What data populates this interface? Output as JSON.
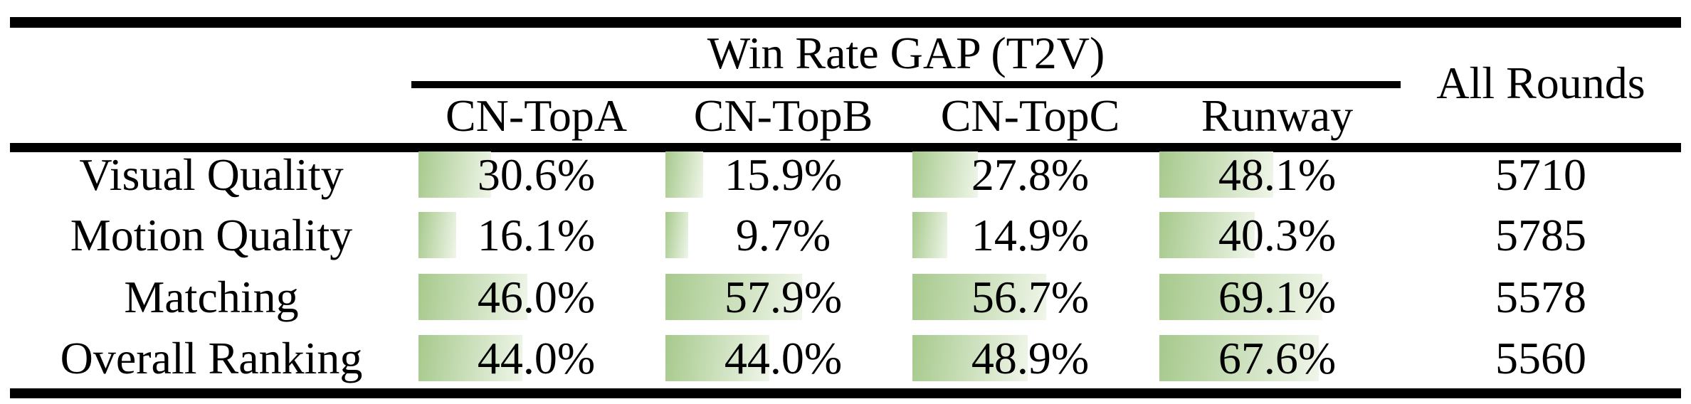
{
  "table": {
    "spanner_title": "Win Rate GAP (T2V)",
    "all_rounds_label": "All Rounds",
    "columns": [
      "CN-TopA",
      "CN-TopB",
      "CN-TopC",
      "Runway"
    ],
    "bar_color_start": "#a6c98c",
    "bar_color_end": "#f0f6ea",
    "rows": [
      {
        "label": "Visual Quality",
        "cells": [
          {
            "text": "30.6%",
            "value": 30.6
          },
          {
            "text": "15.9%",
            "value": 15.9
          },
          {
            "text": "27.8%",
            "value": 27.8
          },
          {
            "text": "48.1%",
            "value": 48.1
          }
        ],
        "all_rounds": "5710"
      },
      {
        "label": "Motion Quality",
        "cells": [
          {
            "text": "16.1%",
            "value": 16.1
          },
          {
            "text": "9.7%",
            "value": 9.7
          },
          {
            "text": "14.9%",
            "value": 14.9
          },
          {
            "text": "40.3%",
            "value": 40.3
          }
        ],
        "all_rounds": "5785"
      },
      {
        "label": "Matching",
        "cells": [
          {
            "text": "46.0%",
            "value": 46.0
          },
          {
            "text": "57.9%",
            "value": 57.9
          },
          {
            "text": "56.7%",
            "value": 56.7
          },
          {
            "text": "69.1%",
            "value": 69.1
          }
        ],
        "all_rounds": "5578"
      },
      {
        "label": "Overall Ranking",
        "cells": [
          {
            "text": "44.0%",
            "value": 44.0
          },
          {
            "text": "44.0%",
            "value": 44.0
          },
          {
            "text": "48.9%",
            "value": 48.9
          },
          {
            "text": "67.6%",
            "value": 67.6
          }
        ],
        "all_rounds": "5560"
      }
    ]
  },
  "chart_data": {
    "type": "table",
    "title": "Win Rate GAP (T2V)",
    "categories": [
      "Visual Quality",
      "Motion Quality",
      "Matching",
      "Overall Ranking"
    ],
    "series": [
      {
        "name": "CN-TopA",
        "values": [
          30.6,
          16.1,
          46.0,
          44.0
        ]
      },
      {
        "name": "CN-TopB",
        "values": [
          15.9,
          9.7,
          57.9,
          44.0
        ]
      },
      {
        "name": "CN-TopC",
        "values": [
          27.8,
          14.9,
          56.7,
          48.9
        ]
      },
      {
        "name": "Runway",
        "values": [
          48.1,
          40.3,
          69.1,
          67.6
        ]
      },
      {
        "name": "All Rounds",
        "values": [
          5710,
          5785,
          5578,
          5560
        ]
      }
    ],
    "value_unit": "%",
    "bar_scale_note": "in-cell data bars proportional to percentage, 100% ~= 332px",
    "legend_position": "none",
    "grid": false
  }
}
